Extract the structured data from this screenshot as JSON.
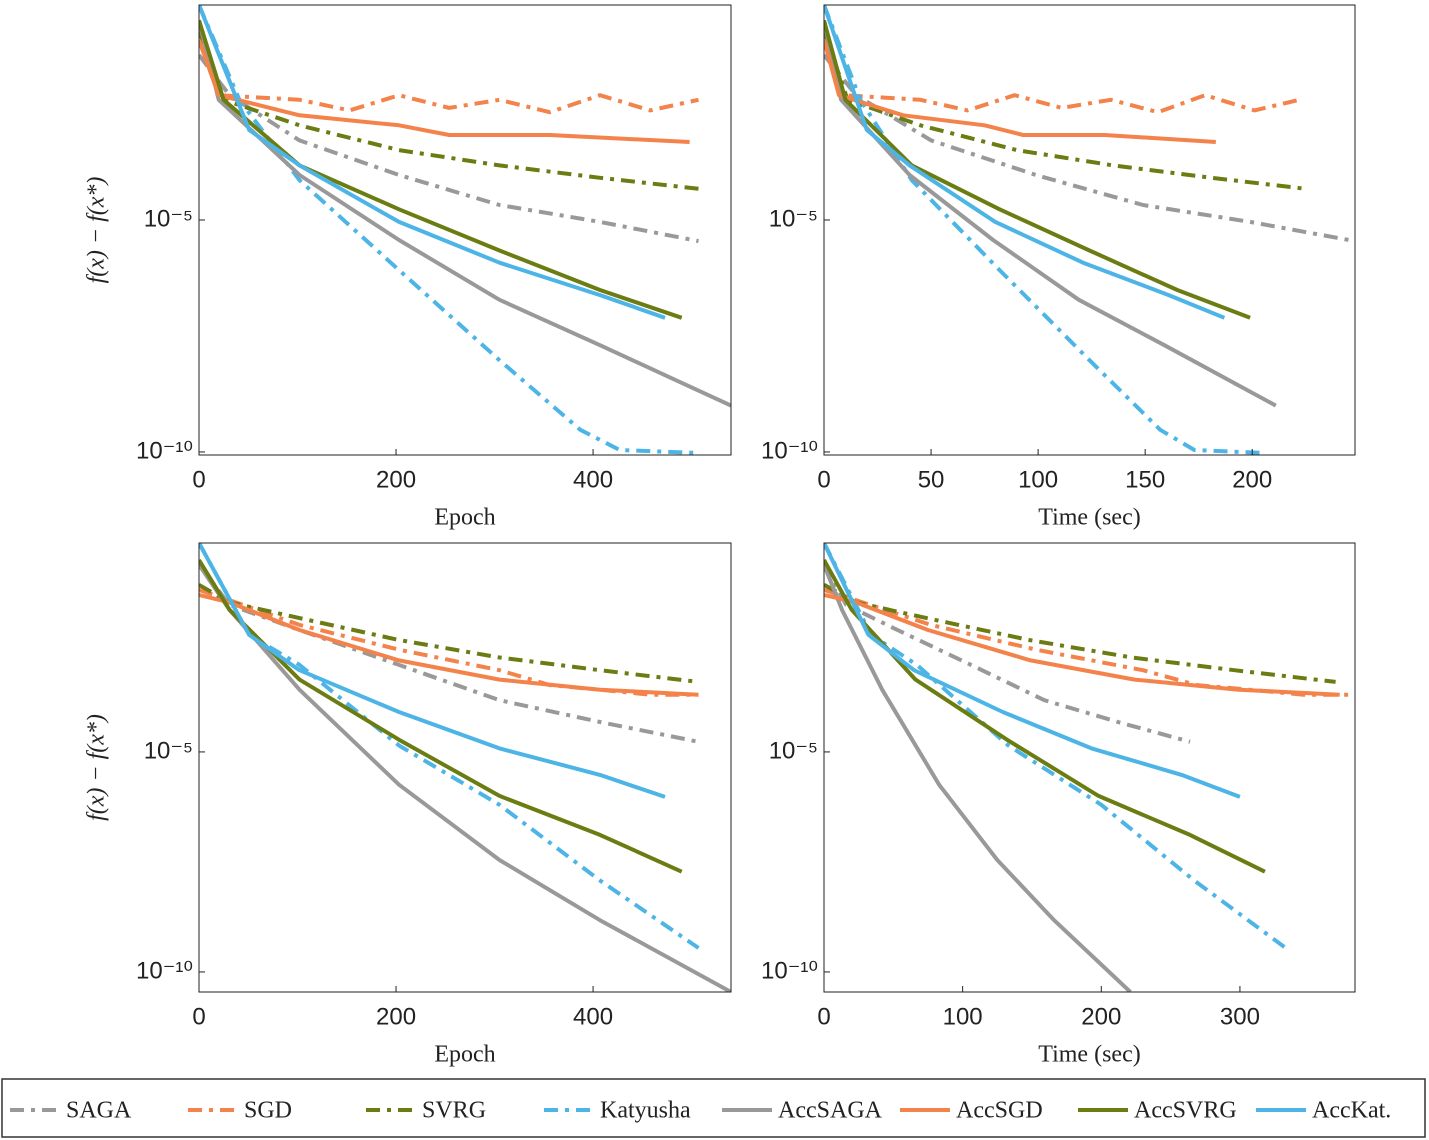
{
  "chart_data": [
    {
      "type": "line",
      "xlabel": "Epoch",
      "ylabel": "f(x) − f(x*)",
      "log_y": true,
      "xlim": [
        0,
        540
      ],
      "xticks": [
        0,
        200,
        400
      ],
      "ylim": [
        8.6e-11,
        0.43
      ],
      "yticks": [
        {
          "value": 1e-10,
          "label": "10⁻¹⁰"
        },
        {
          "value": 1e-05,
          "label": "10⁻⁵"
        }
      ],
      "series": [
        {
          "name": "SAGA",
          "color": "#999999",
          "style": "dashdot",
          "x": [
            0,
            31,
            102,
            203,
            305,
            407,
            507
          ],
          "values": [
            0.036,
            0.0049,
            0.00052,
            9.3e-05,
            2.1e-05,
            9.1e-06,
            3.5e-06
          ]
        },
        {
          "name": "SGD",
          "color": "#f4824b",
          "style": "dashdot",
          "x": [
            0,
            20,
            102,
            153,
            203,
            254,
            305,
            356,
            407,
            458,
            507
          ],
          "values": [
            0.076,
            0.0049,
            0.0039,
            0.0023,
            0.0049,
            0.0026,
            0.0039,
            0.0021,
            0.0049,
            0.0023,
            0.0039
          ]
        },
        {
          "name": "SVRG",
          "color": "#6b7d12",
          "style": "dashdot",
          "x": [
            0,
            25,
            102,
            203,
            305,
            407,
            507
          ],
          "values": [
            0.12,
            0.0039,
            0.0011,
            0.00032,
            0.00015,
            8.1e-05,
            4.7e-05
          ]
        },
        {
          "name": "Katyusha",
          "color": "#4db4e6",
          "style": "dashdot",
          "x": [
            0,
            41,
            102,
            203,
            305,
            387,
            427,
            507
          ],
          "values": [
            0.43,
            0.0039,
            7.2e-05,
            8.3e-07,
            9.5e-09,
            3e-10,
            1.1e-10,
            9.5e-11
          ]
        },
        {
          "name": "AccSAGA",
          "color": "#999999",
          "style": "solid",
          "x": [
            0,
            20,
            102,
            203,
            305,
            407,
            540
          ],
          "values": [
            0.2,
            0.0039,
            9.3e-05,
            3.7e-06,
            1.9e-07,
            2e-08,
            1e-09
          ]
        },
        {
          "name": "AccSGD",
          "color": "#f4824b",
          "style": "solid",
          "x": [
            0,
            20,
            102,
            203,
            254,
            356,
            498
          ],
          "values": [
            0.076,
            0.0049,
            0.0018,
            0.0011,
            0.00068,
            0.00068,
            0.00048
          ]
        },
        {
          "name": "AccSVRG",
          "color": "#6b7d12",
          "style": "solid",
          "x": [
            0,
            25,
            102,
            203,
            305,
            407,
            490
          ],
          "values": [
            0.2,
            0.0039,
            0.00015,
            1.7e-05,
            2.2e-06,
            3.1e-07,
            7.8e-08
          ]
        },
        {
          "name": "AccKat.",
          "color": "#4db4e6",
          "style": "solid",
          "x": [
            0,
            51,
            102,
            203,
            305,
            407,
            473
          ],
          "values": [
            0.43,
            0.00087,
            0.00015,
            9.1e-06,
            1.2e-06,
            2.4e-07,
            7.8e-08
          ]
        }
      ]
    },
    {
      "type": "line",
      "xlabel": "Time (sec)",
      "log_y": true,
      "xlim": [
        0,
        248
      ],
      "xticks": [
        0,
        50,
        100,
        150,
        200
      ],
      "ylim": [
        8.6e-11,
        0.43
      ],
      "yticks": [
        {
          "value": 1e-10,
          "label": "10⁻¹⁰"
        },
        {
          "value": 1e-05,
          "label": "10⁻⁵"
        }
      ],
      "series": [
        {
          "name": "SAGA",
          "color": "#999999",
          "style": "dashdot",
          "x": [
            0,
            15,
            50,
            99,
            149,
            199,
            248
          ],
          "values": [
            0.036,
            0.0049,
            0.00052,
            9.3e-05,
            2.1e-05,
            9.1e-06,
            3.5e-06
          ]
        },
        {
          "name": "SGD",
          "color": "#f4824b",
          "style": "dashdot",
          "x": [
            0,
            9,
            45,
            67,
            89,
            111,
            134,
            156,
            178,
            201,
            222
          ],
          "values": [
            0.076,
            0.0049,
            0.0039,
            0.0023,
            0.0049,
            0.0026,
            0.0039,
            0.0021,
            0.0049,
            0.0023,
            0.0039
          ]
        },
        {
          "name": "SVRG",
          "color": "#6b7d12",
          "style": "dashdot",
          "x": [
            0,
            11,
            45,
            90,
            135,
            181,
            225
          ],
          "values": [
            0.12,
            0.0039,
            0.0011,
            0.00032,
            0.00015,
            8.1e-05,
            4.7e-05
          ]
        },
        {
          "name": "Katyusha",
          "color": "#4db4e6",
          "style": "dashdot",
          "x": [
            0,
            17,
            41,
            82,
            124,
            157,
            173,
            206
          ],
          "values": [
            0.43,
            0.0039,
            7.2e-05,
            8.3e-07,
            9.5e-09,
            3e-10,
            1.1e-10,
            9.5e-11
          ]
        },
        {
          "name": "AccSAGA",
          "color": "#999999",
          "style": "solid",
          "x": [
            0,
            8,
            40,
            79,
            119,
            159,
            211
          ],
          "values": [
            0.2,
            0.0039,
            9.3e-05,
            3.7e-06,
            1.9e-07,
            2e-08,
            1e-09
          ]
        },
        {
          "name": "AccSGD",
          "color": "#f4824b",
          "style": "solid",
          "x": [
            0,
            7,
            37,
            75,
            93,
            131,
            183
          ],
          "values": [
            0.076,
            0.0049,
            0.0018,
            0.0011,
            0.00068,
            0.00068,
            0.00048
          ]
        },
        {
          "name": "AccSVRG",
          "color": "#6b7d12",
          "style": "solid",
          "x": [
            0,
            10,
            41,
            82,
            124,
            165,
            199
          ],
          "values": [
            0.2,
            0.0039,
            0.00015,
            1.7e-05,
            2.2e-06,
            3.1e-07,
            7.8e-08
          ]
        },
        {
          "name": "AccKat.",
          "color": "#4db4e6",
          "style": "solid",
          "x": [
            0,
            20,
            40,
            80,
            121,
            161,
            187
          ],
          "values": [
            0.43,
            0.00087,
            0.00015,
            9.1e-06,
            1.2e-06,
            2.4e-07,
            7.8e-08
          ]
        }
      ]
    },
    {
      "type": "line",
      "xlabel": "Epoch",
      "ylabel": "f(x) − f(x*)",
      "log_y": true,
      "xlim": [
        0,
        540
      ],
      "xticks": [
        0,
        200,
        400
      ],
      "ylim": [
        3.5e-11,
        0.56
      ],
      "yticks": [
        {
          "value": 1e-10,
          "label": "10⁻¹⁰"
        },
        {
          "value": 1e-05,
          "label": "10⁻⁵"
        }
      ],
      "series": [
        {
          "name": "SAGA",
          "color": "#999999",
          "style": "dashdot",
          "x": [
            0,
            31,
            102,
            203,
            305,
            407,
            507
          ],
          "values": [
            0.18,
            0.022,
            0.0059,
            0.00095,
            0.00015,
            4.8e-05,
            1.7e-05
          ]
        },
        {
          "name": "SGD",
          "color": "#f4824b",
          "style": "dashdot",
          "x": [
            0,
            31,
            102,
            203,
            305,
            356,
            407,
            458,
            507
          ],
          "values": [
            0.048,
            0.028,
            0.0077,
            0.0021,
            0.00072,
            0.00033,
            0.00026,
            0.0002,
            0.0002
          ]
        },
        {
          "name": "SVRG",
          "color": "#6b7d12",
          "style": "dashdot",
          "x": [
            0,
            31,
            102,
            203,
            305,
            407,
            507
          ],
          "values": [
            0.063,
            0.025,
            0.011,
            0.0035,
            0.0014,
            0.00072,
            0.00039
          ]
        },
        {
          "name": "Katyusha",
          "color": "#4db4e6",
          "style": "dashdot",
          "x": [
            0,
            51,
            102,
            203,
            305,
            407,
            507
          ],
          "values": [
            0.56,
            0.0046,
            0.00095,
            1.4e-05,
            6.3e-07,
            1.2e-08,
            3.5e-10
          ]
        },
        {
          "name": "AccSAGA",
          "color": "#999999",
          "style": "solid",
          "x": [
            0,
            31,
            102,
            203,
            305,
            407,
            540
          ],
          "values": [
            0.18,
            0.017,
            0.00026,
            1.8e-06,
            3.5e-08,
            1.5e-09,
            3.5e-11
          ]
        },
        {
          "name": "AccSGD",
          "color": "#f4824b",
          "style": "solid",
          "x": [
            0,
            31,
            102,
            203,
            305,
            407,
            507
          ],
          "values": [
            0.037,
            0.025,
            0.0059,
            0.0012,
            0.00044,
            0.00026,
            0.0002
          ]
        },
        {
          "name": "AccSVRG",
          "color": "#6b7d12",
          "style": "solid",
          "x": [
            0,
            31,
            102,
            203,
            305,
            407,
            490
          ],
          "values": [
            0.23,
            0.017,
            0.00044,
            1.9e-05,
            1e-06,
            1.3e-07,
            1.9e-08
          ]
        },
        {
          "name": "AccKat.",
          "color": "#4db4e6",
          "style": "solid",
          "x": [
            0,
            51,
            102,
            203,
            305,
            407,
            473
          ],
          "values": [
            0.56,
            0.0046,
            0.00072,
            8.1e-05,
            1.2e-05,
            3e-06,
            9.5e-07
          ]
        }
      ]
    },
    {
      "type": "line",
      "xlabel": "Time (sec)",
      "log_y": true,
      "xlim": [
        0,
        383
      ],
      "xticks": [
        0,
        100,
        200,
        300
      ],
      "ylim": [
        3.5e-11,
        0.56
      ],
      "yticks": [
        {
          "value": 1e-10,
          "label": "10⁻¹⁰"
        },
        {
          "value": 1e-05,
          "label": "10⁻⁵"
        }
      ],
      "series": [
        {
          "name": "SAGA",
          "color": "#999999",
          "style": "dashdot",
          "x": [
            0,
            16,
            53,
            106,
            159,
            212,
            264
          ],
          "values": [
            0.18,
            0.022,
            0.0059,
            0.00095,
            0.00015,
            4.8e-05,
            1.7e-05
          ]
        },
        {
          "name": "SGD",
          "color": "#f4824b",
          "style": "dashdot",
          "x": [
            0,
            23,
            77,
            153,
            230,
            269,
            307,
            346,
            383
          ],
          "values": [
            0.048,
            0.028,
            0.0077,
            0.0021,
            0.00072,
            0.00033,
            0.00026,
            0.0002,
            0.0002
          ]
        },
        {
          "name": "SVRG",
          "color": "#6b7d12",
          "style": "dashdot",
          "x": [
            0,
            23,
            74,
            148,
            222,
            296,
            369
          ],
          "values": [
            0.063,
            0.025,
            0.011,
            0.0035,
            0.0014,
            0.00072,
            0.00039
          ]
        },
        {
          "name": "Katyusha",
          "color": "#4db4e6",
          "style": "dashdot",
          "x": [
            0,
            34,
            67,
            133,
            200,
            267,
            333
          ],
          "values": [
            0.56,
            0.0046,
            0.00095,
            1.4e-05,
            6.3e-07,
            1.2e-08,
            3.5e-10
          ]
        },
        {
          "name": "AccSAGA",
          "color": "#999999",
          "style": "solid",
          "x": [
            0,
            13,
            42,
            83,
            125,
            166,
            221
          ],
          "values": [
            0.18,
            0.017,
            0.00026,
            1.8e-06,
            3.5e-08,
            1.5e-09,
            3.5e-11
          ]
        },
        {
          "name": "AccSGD",
          "color": "#f4824b",
          "style": "solid",
          "x": [
            0,
            23,
            75,
            149,
            224,
            299,
            372
          ],
          "values": [
            0.037,
            0.025,
            0.0059,
            0.0012,
            0.00044,
            0.00026,
            0.0002
          ]
        },
        {
          "name": "AccSVRG",
          "color": "#6b7d12",
          "style": "solid",
          "x": [
            0,
            20,
            66,
            132,
            198,
            264,
            318
          ],
          "values": [
            0.23,
            0.017,
            0.00044,
            1.9e-05,
            1e-06,
            1.3e-07,
            1.9e-08
          ]
        },
        {
          "name": "AccKat.",
          "color": "#4db4e6",
          "style": "solid",
          "x": [
            0,
            32,
            65,
            129,
            193,
            258,
            300
          ],
          "values": [
            0.56,
            0.0046,
            0.00072,
            8.1e-05,
            1.2e-05,
            3e-06,
            9.5e-07
          ]
        }
      ]
    }
  ]
}
